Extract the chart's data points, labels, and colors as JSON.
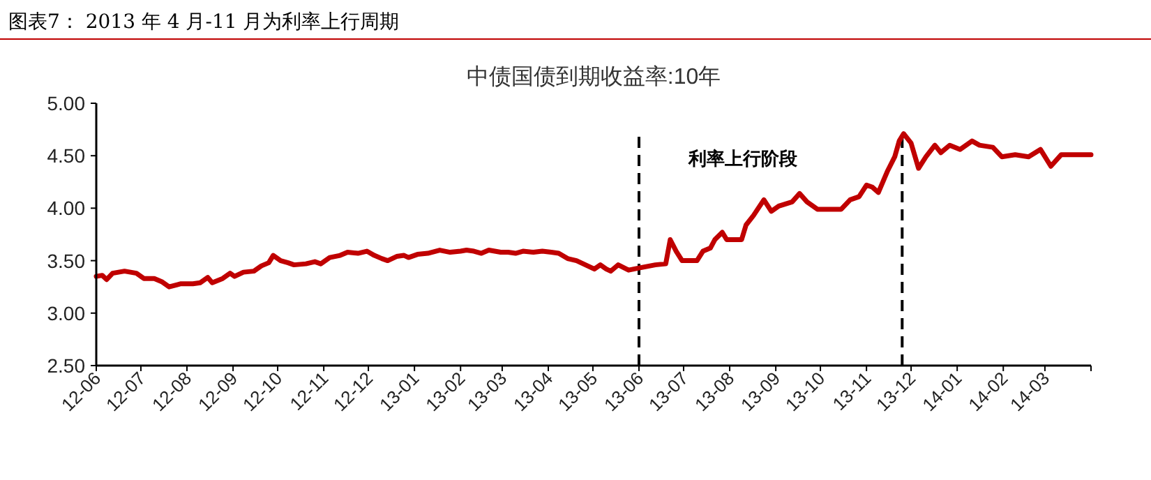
{
  "chart_data": {
    "type": "line",
    "title": "图表7：  2013 年 4 月-11 月为利率上行周期",
    "subtitle": "中债国债到期收益率:10年",
    "annotations": [
      "利率上行阶段"
    ],
    "x": [
      "2012-06-01",
      "2012-06-05",
      "2012-06-08",
      "2012-06-12",
      "2012-06-20",
      "2012-06-28",
      "2012-07-03",
      "2012-07-10",
      "2012-07-15",
      "2012-07-20",
      "2012-07-28",
      "2012-08-05",
      "2012-08-10",
      "2012-08-15",
      "2012-08-18",
      "2012-08-25",
      "2012-08-30",
      "2012-09-02",
      "2012-09-08",
      "2012-09-15",
      "2012-09-20",
      "2012-09-25",
      "2012-09-28",
      "2012-10-03",
      "2012-10-08",
      "2012-10-12",
      "2012-10-20",
      "2012-10-26",
      "2012-10-30",
      "2012-11-05",
      "2012-11-12",
      "2012-11-17",
      "2012-11-24",
      "2012-11-30",
      "2012-12-05",
      "2012-12-10",
      "2012-12-14",
      "2012-12-20",
      "2012-12-25",
      "2012-12-28",
      "2013-01-03",
      "2013-01-10",
      "2013-01-18",
      "2013-01-25",
      "2013-02-01",
      "2013-02-05",
      "2013-02-10",
      "2013-02-15",
      "2013-02-20",
      "2013-02-28",
      "2013-03-05",
      "2013-03-10",
      "2013-03-15",
      "2013-03-22",
      "2013-03-28",
      "2013-04-03",
      "2013-04-08",
      "2013-04-14",
      "2013-04-20",
      "2013-04-26",
      "2013-05-02",
      "2013-05-06",
      "2013-05-10",
      "2013-05-13",
      "2013-05-18",
      "2013-05-25",
      "2013-06-01",
      "2013-06-12",
      "2013-06-19",
      "2013-06-22",
      "2013-06-26",
      "2013-06-30",
      "2013-07-10",
      "2013-07-14",
      "2013-07-19",
      "2013-07-22",
      "2013-07-27",
      "2013-07-30",
      "2013-08-09",
      "2013-08-12",
      "2013-08-17",
      "2013-08-24",
      "2013-08-29",
      "2013-09-03",
      "2013-09-12",
      "2013-09-17",
      "2013-09-22",
      "2013-09-29",
      "2013-10-05",
      "2013-10-15",
      "2013-10-21",
      "2013-10-27",
      "2013-11-01",
      "2013-11-05",
      "2013-11-09",
      "2013-11-15",
      "2013-11-20",
      "2013-11-23",
      "2013-11-26",
      "2013-12-01",
      "2013-12-06",
      "2013-12-11",
      "2013-12-17",
      "2013-12-21",
      "2013-12-27",
      "2014-01-03",
      "2014-01-11",
      "2014-01-16",
      "2014-01-25",
      "2014-01-31",
      "2014-02-09",
      "2014-02-18",
      "2014-02-26",
      "2014-03-05",
      "2014-03-12",
      "2014-03-24",
      "2014-04-01"
    ],
    "series": [
      {
        "color": "#c00000",
        "values": [
          3.35,
          3.36,
          3.32,
          3.38,
          3.4,
          3.38,
          3.33,
          3.33,
          3.3,
          3.25,
          3.28,
          3.28,
          3.29,
          3.34,
          3.29,
          3.33,
          3.38,
          3.35,
          3.39,
          3.4,
          3.45,
          3.48,
          3.55,
          3.5,
          3.48,
          3.46,
          3.47,
          3.49,
          3.47,
          3.53,
          3.55,
          3.58,
          3.57,
          3.59,
          3.55,
          3.52,
          3.5,
          3.54,
          3.55,
          3.53,
          3.56,
          3.57,
          3.6,
          3.58,
          3.59,
          3.6,
          3.59,
          3.57,
          3.6,
          3.58,
          3.58,
          3.57,
          3.59,
          3.58,
          3.59,
          3.58,
          3.57,
          3.52,
          3.5,
          3.46,
          3.42,
          3.46,
          3.42,
          3.4,
          3.46,
          3.41,
          3.43,
          3.46,
          3.47,
          3.7,
          3.59,
          3.5,
          3.5,
          3.59,
          3.62,
          3.7,
          3.77,
          3.7,
          3.7,
          3.84,
          3.93,
          4.08,
          3.97,
          4.02,
          4.06,
          4.14,
          4.06,
          3.99,
          3.99,
          3.99,
          4.08,
          4.11,
          4.22,
          4.2,
          4.15,
          4.35,
          4.49,
          4.64,
          4.71,
          4.62,
          4.38,
          4.49,
          4.6,
          4.53,
          4.6,
          4.56,
          4.64,
          4.6,
          4.58,
          4.49,
          4.51,
          4.49,
          4.56,
          4.4,
          4.51,
          4.51,
          4.51
        ]
      }
    ],
    "xlim": [
      "2012-06-01",
      "2014-04-01"
    ],
    "xticks": [
      {
        "value": "2012-06-01",
        "label": "12-06"
      },
      {
        "value": "2012-07-01",
        "label": "12-07"
      },
      {
        "value": "2012-08-01",
        "label": "12-08"
      },
      {
        "value": "2012-09-01",
        "label": "12-09"
      },
      {
        "value": "2012-10-01",
        "label": "12-10"
      },
      {
        "value": "2012-11-01",
        "label": "12-11"
      },
      {
        "value": "2012-12-01",
        "label": "12-12"
      },
      {
        "value": "2013-01-01",
        "label": "13-01"
      },
      {
        "value": "2013-02-01",
        "label": "13-02"
      },
      {
        "value": "2013-03-01",
        "label": "13-03"
      },
      {
        "value": "2013-04-01",
        "label": "13-04"
      },
      {
        "value": "2013-05-01",
        "label": "13-05"
      },
      {
        "value": "2013-06-01",
        "label": "13-06"
      },
      {
        "value": "2013-07-01",
        "label": "13-07"
      },
      {
        "value": "2013-08-01",
        "label": "13-08"
      },
      {
        "value": "2013-09-01",
        "label": "13-09"
      },
      {
        "value": "2013-10-01",
        "label": "13-10"
      },
      {
        "value": "2013-11-01",
        "label": "13-11"
      },
      {
        "value": "2013-12-01",
        "label": "13-12"
      },
      {
        "value": "2014-01-01",
        "label": "14-01"
      },
      {
        "value": "2014-02-01",
        "label": "14-02"
      },
      {
        "value": "2014-03-01",
        "label": "14-03"
      },
      {
        "value": "2014-04-01",
        "label": null
      }
    ],
    "ylim": [
      2.5,
      5.0
    ],
    "yticks": [
      {
        "value": 2.5,
        "label": "2.50"
      },
      {
        "value": 3.0,
        "label": "3.00"
      },
      {
        "value": 3.5,
        "label": "3.50"
      },
      {
        "value": 4.0,
        "label": "4.00"
      },
      {
        "value": 4.5,
        "label": "4.50"
      },
      {
        "value": 5.0,
        "label": "5.00"
      }
    ],
    "ref_lines": [
      {
        "axis": "x",
        "value": "2013-06-01",
        "color": "#000000",
        "line_style": "dashed"
      },
      {
        "axis": "x",
        "value": "2013-11-25",
        "color": "#000000",
        "line_style": "dashed"
      }
    ],
    "grid": false,
    "marker": "none",
    "line_style": "solid"
  }
}
